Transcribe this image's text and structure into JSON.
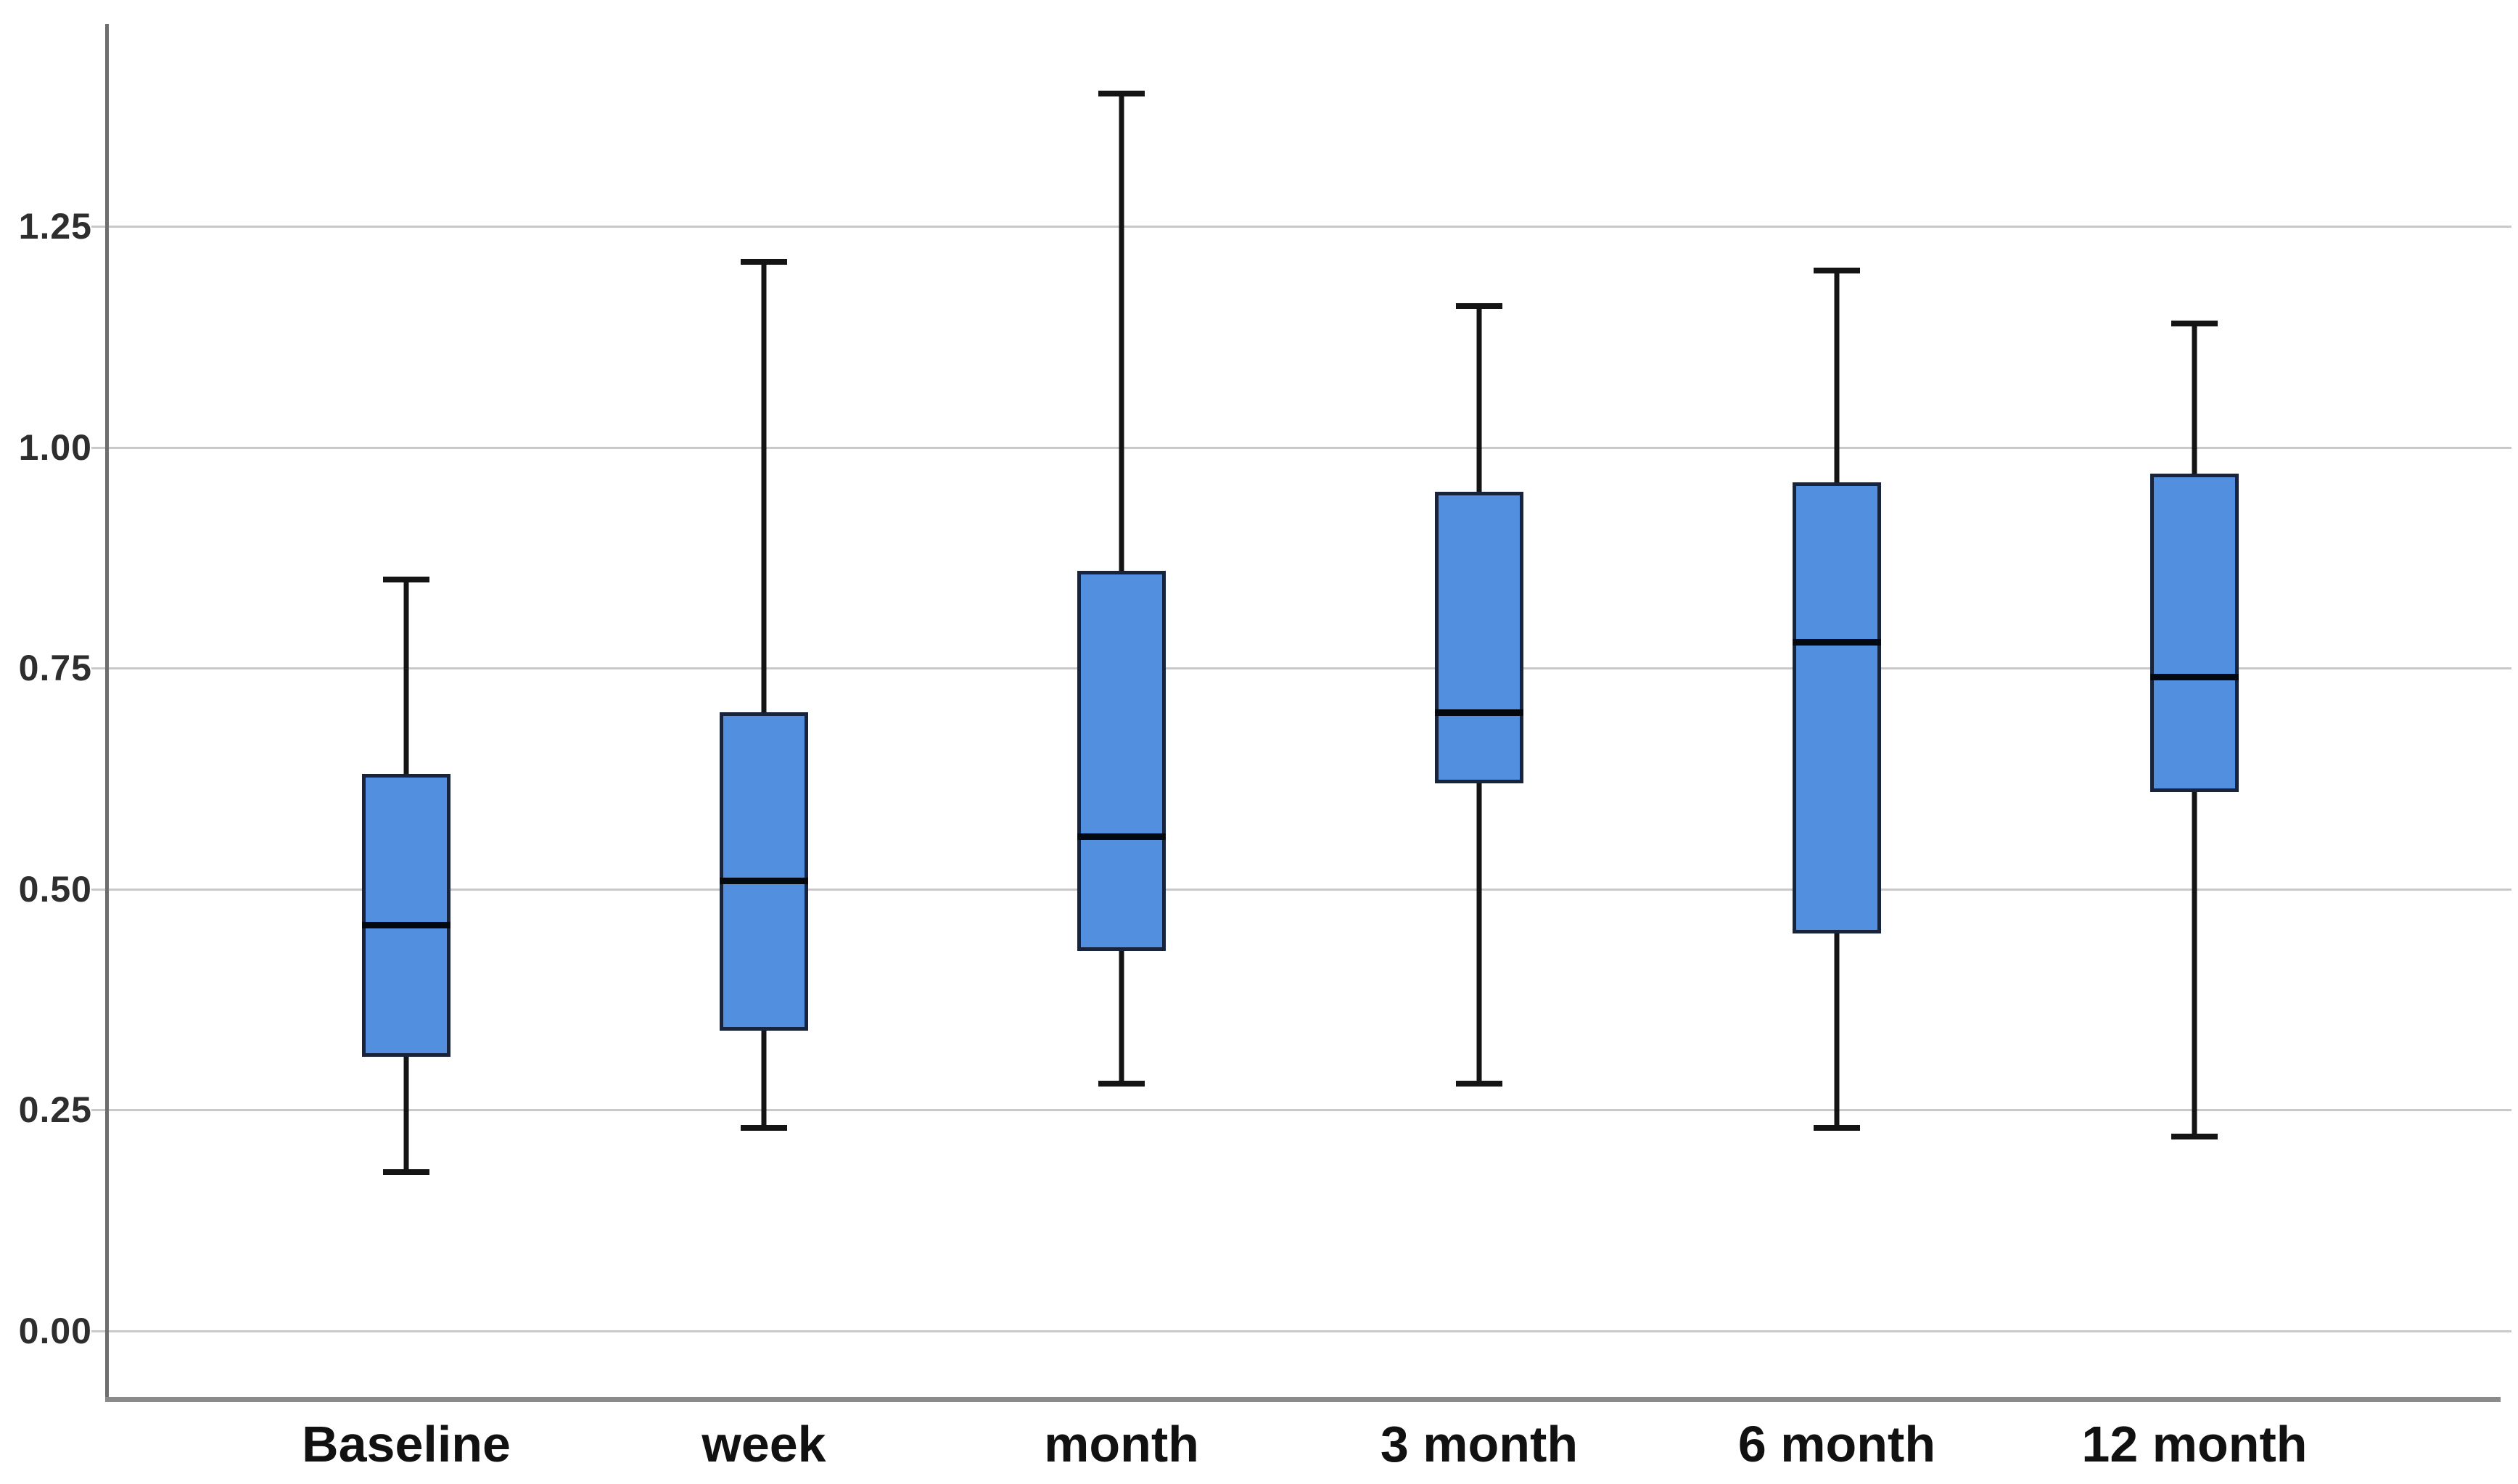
{
  "chart_data": {
    "type": "box",
    "title": "",
    "xlabel": "",
    "ylabel": "",
    "grid": "horizontal-only",
    "legend": "none",
    "background": "#ffffff",
    "ylim": [
      -0.05,
      1.47
    ],
    "yticks": [
      {
        "label": "0.00",
        "value": 0.0
      },
      {
        "label": "0.25",
        "value": 0.25
      },
      {
        "label": "0.50",
        "value": 0.5
      },
      {
        "label": "0.75",
        "value": 0.75
      },
      {
        "label": "1.00",
        "value": 1.0
      },
      {
        "label": "1.25",
        "value": 1.25
      }
    ],
    "categories": [
      "Baseline",
      "week",
      "month",
      "3 month",
      "6 month",
      "12 month"
    ],
    "boxes": [
      {
        "category": "Baseline",
        "min": 0.18,
        "q1": 0.31,
        "median": 0.46,
        "q3": 0.63,
        "max": 0.85
      },
      {
        "category": "week",
        "min": 0.23,
        "q1": 0.34,
        "median": 0.51,
        "q3": 0.7,
        "max": 1.21
      },
      {
        "category": "month",
        "min": 0.28,
        "q1": 0.43,
        "median": 0.56,
        "q3": 0.86,
        "max": 1.4
      },
      {
        "category": "3 month",
        "min": 0.28,
        "q1": 0.62,
        "median": 0.7,
        "q3": 0.95,
        "max": 1.16
      },
      {
        "category": "6 month",
        "min": 0.23,
        "q1": 0.45,
        "median": 0.78,
        "q3": 0.96,
        "max": 1.2
      },
      {
        "category": "12 month",
        "min": 0.22,
        "q1": 0.61,
        "median": 0.74,
        "q3": 0.97,
        "max": 1.14
      }
    ],
    "colors": {
      "box_fill": "#5290df",
      "box_border": "#17243c",
      "median": "#04080f",
      "whisker": "#141414",
      "gridline": "#c9c9c9",
      "y_axis": "#6e6e6e",
      "x_axis": "#8a8a8a",
      "tick_label": "#2e2e2e",
      "category_label": "#111111"
    }
  }
}
